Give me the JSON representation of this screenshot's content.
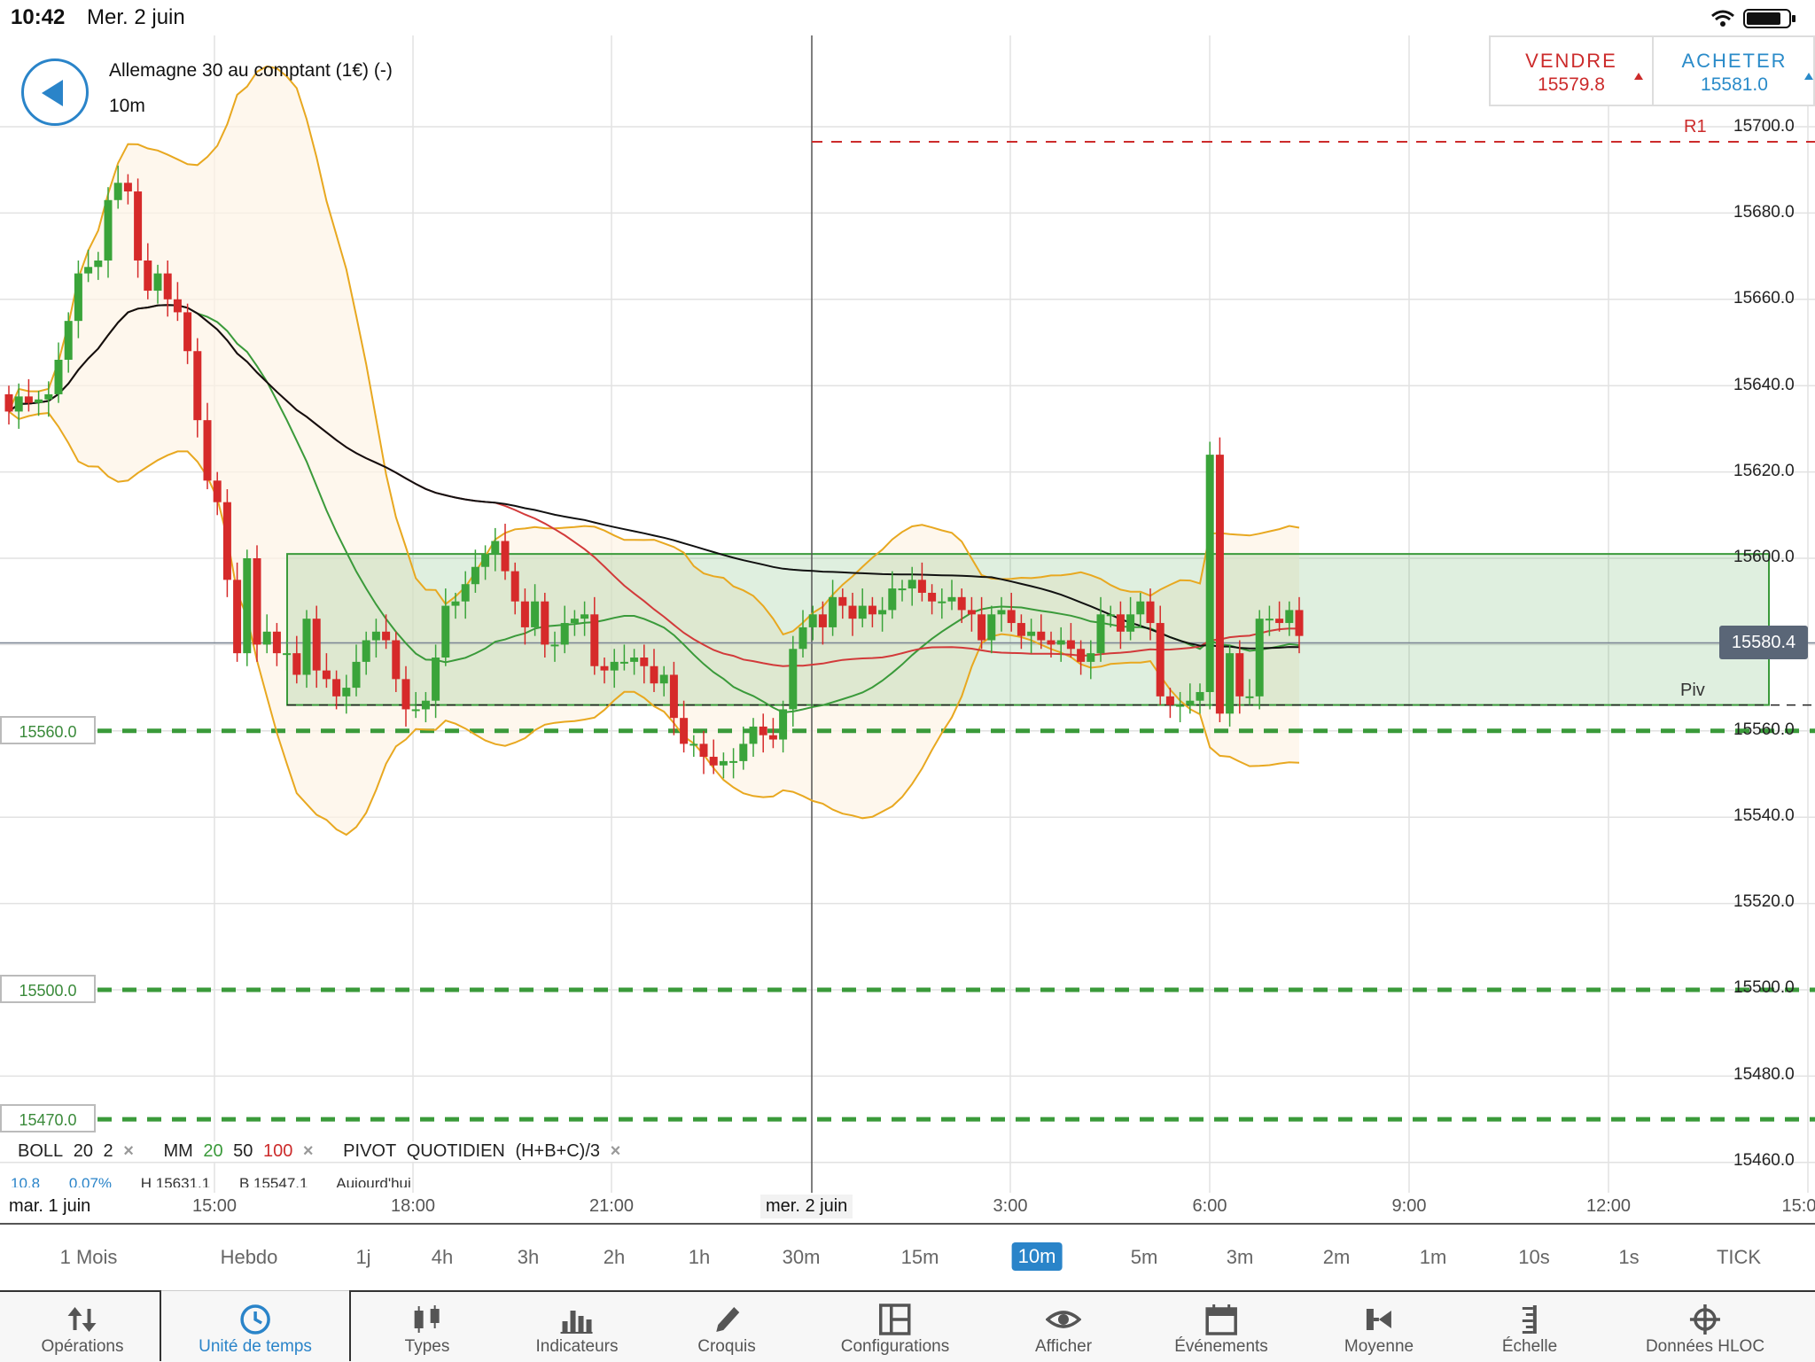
{
  "status": {
    "time": "10:42",
    "date": "Mer. 2 juin"
  },
  "instrument": {
    "name": "Allemagne 30 au comptant (1€) (-)",
    "timeframe": "10m"
  },
  "trade": {
    "sell_label": "VENDRE",
    "sell_price": "15579.8",
    "buy_label": "ACHETER",
    "buy_price": "15581.0",
    "colors": {
      "sell": "#cc2b2b",
      "buy": "#2a8bc9"
    }
  },
  "price_axis": [
    "15700.0",
    "15680.0",
    "15660.0",
    "15640.0",
    "15620.0",
    "15600.0",
    "15560.0",
    "15540.0",
    "15520.0",
    "15500.0",
    "15480.0",
    "15460.0"
  ],
  "current_price": "15580.4",
  "levels": {
    "r1": "R1",
    "piv": "Piv",
    "support1": "15560.0",
    "support2": "15500.0",
    "support3": "15470.0"
  },
  "indicators": {
    "boll": "BOLL",
    "boll_p1": "20",
    "boll_p2": "2",
    "mm": "MM",
    "mm_p1": "20",
    "mm_p2": "50",
    "mm_p3": "100",
    "pivot": "PIVOT",
    "pivot_p1": "QUOTIDIEN",
    "pivot_p2": "(H+B+C)/3",
    "remove": "×"
  },
  "stats": {
    "change": "10.8",
    "change_pct": "0.07%",
    "high": "H 15631.1",
    "low": "B 15547.1",
    "period": "Aujourd'hui"
  },
  "time_axis": {
    "date_left": "mar. 1 juin",
    "date_mid": "mer. 2 juin",
    "labels": [
      "15:00",
      "18:00",
      "21:00",
      "3:00",
      "6:00",
      "9:00",
      "12:00",
      "15:0"
    ]
  },
  "timeframes": [
    "1 Mois",
    "Hebdo",
    "1j",
    "4h",
    "3h",
    "2h",
    "1h",
    "30m",
    "15m",
    "10m",
    "5m",
    "3m",
    "2m",
    "1m",
    "10s",
    "1s",
    "TICK"
  ],
  "active_timeframe": "10m",
  "bottom_nav": [
    "Opérations",
    "Unité de temps",
    "Types",
    "Indicateurs",
    "Croquis",
    "Configurations",
    "Afficher",
    "Événements",
    "Moyenne",
    "Échelle",
    "Données HLOC"
  ],
  "active_bottom": "Unité de temps",
  "chart_data": {
    "type": "candlestick",
    "y_range": [
      15455,
      15712
    ],
    "colors": {
      "up": "#3aa43a",
      "down": "#d62a2a",
      "bollinger": "#e8a820",
      "ma20": "#3a9a3a",
      "ma50": "#d23a3a",
      "ma100": "#111111"
    },
    "close_prices": [
      15634.0,
      15637.5,
      15636.0,
      15636.8,
      15638.0,
      15646.0,
      15655.0,
      15666.0,
      15667.5,
      15669.0,
      15683.0,
      15687.0,
      15685.0,
      15669.0,
      15662.0,
      15666.0,
      15660.0,
      15657.0,
      15648.0,
      15632.0,
      15618.0,
      15613.0,
      15595.0,
      15578.0,
      15600.0,
      15580.0,
      15583.0,
      15578.0,
      15578.0,
      15573.0,
      15586.0,
      15574.0,
      15572.0,
      15568.0,
      15570.0,
      15576.0,
      15581.0,
      15583.0,
      15581.0,
      15572.0,
      15565.0,
      15565.0,
      15567.0,
      15577.0,
      15589.0,
      15590.0,
      15594.0,
      15598.0,
      15601.0,
      15604.0,
      15597.0,
      15590.0,
      15584.0,
      15590.0,
      15580.0,
      15580.0,
      15585.0,
      15586.0,
      15587.0,
      15575.0,
      15574.0,
      15576.0,
      15576.0,
      15577.0,
      15575.0,
      15571.0,
      15573.0,
      15563.0,
      15557.0,
      15557.0,
      15554.0,
      15552.0,
      15553.0,
      15553.0,
      15557.0,
      15561.0,
      15559.0,
      15558.0,
      15565.0,
      15579.0,
      15584.0,
      15587.0,
      15584.0,
      15591.0,
      15589.0,
      15586.0,
      15589.0,
      15587.0,
      15588.0,
      15593.0,
      15593.0,
      15595.0,
      15592.0,
      15590.0,
      15590.0,
      15591.0,
      15588.0,
      15587.0,
      15581.0,
      15587.0,
      15588.0,
      15585.0,
      15582.0,
      15583.0,
      15581.0,
      15580.0,
      15581.0,
      15579.0,
      15576.0,
      15578.0,
      15587.0,
      15587.0,
      15583.0,
      15587.0,
      15590.0,
      15585.0,
      15568.0,
      15566.0,
      15566.0,
      15567.0,
      15569.0,
      15624.0,
      15564.0,
      15578.0,
      15568.0,
      15568.0,
      15586.0,
      15586.0,
      15585.0,
      15588.0,
      15582.0
    ]
  }
}
